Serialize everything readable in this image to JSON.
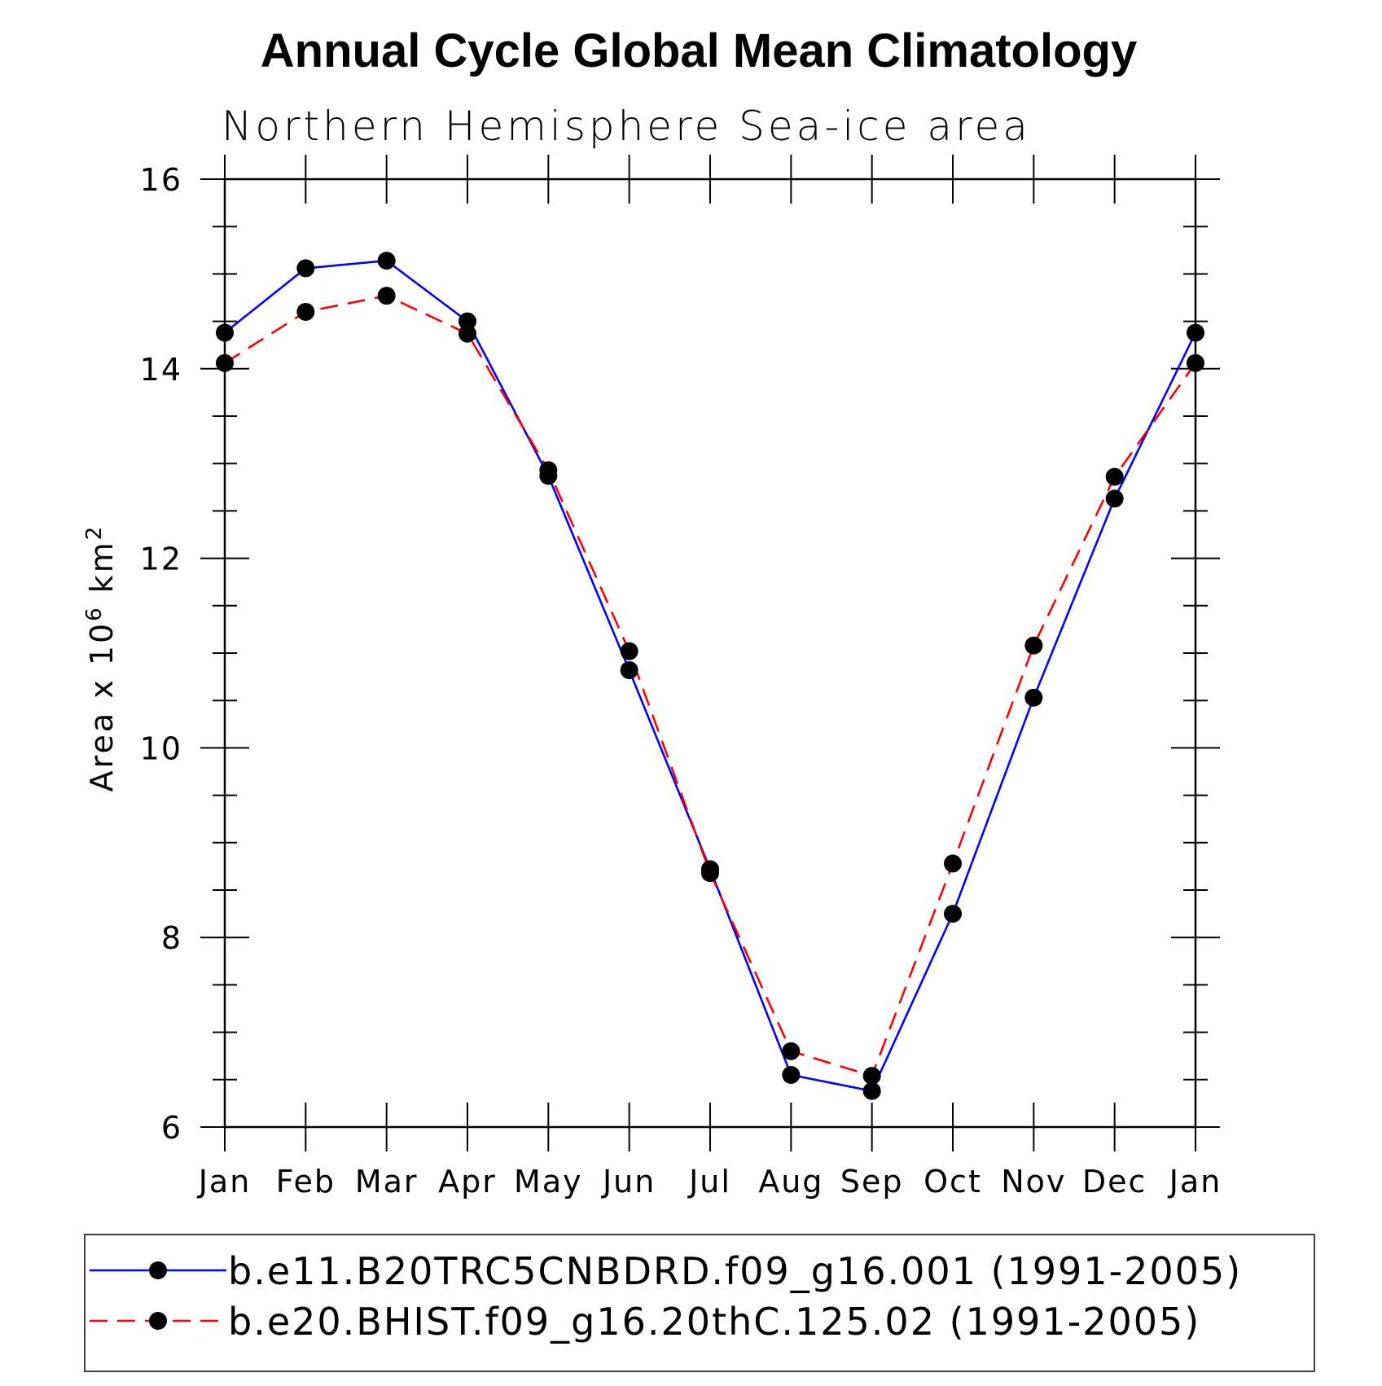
{
  "chart_data": {
    "type": "line",
    "title": "Annual Cycle Global Mean Climatology",
    "subtitle": "Northern Hemisphere Sea-ice area",
    "ylabel": "Area x 10",
    "ylabel_exp": "6",
    "ylabel_unit": " km",
    "ylabel_unit_exp": "2",
    "ylim": [
      6,
      16
    ],
    "y_ticks": [
      "6",
      "8",
      "10",
      "12",
      "14",
      "16"
    ],
    "categories": [
      "Jan",
      "Feb",
      "Mar",
      "Apr",
      "May",
      "Jun",
      "Jul",
      "Aug",
      "Sep",
      "Oct",
      "Nov",
      "Dec",
      "Jan"
    ],
    "legend_position": "bottom",
    "series": [
      {
        "name": "b.e11.B20TRC5CNBDRD.f09_g16.001 (1991-2005)",
        "color": "#0000ff",
        "dash": "solid",
        "values": [
          14.38,
          15.06,
          15.14,
          14.5,
          12.87,
          10.82,
          8.72,
          6.55,
          6.38,
          8.25,
          10.53,
          12.63,
          14.38
        ]
      },
      {
        "name": "b.e20.BHIST.f09_g16.20thC.125.02 (1991-2005)",
        "color": "#ff0000",
        "dash": "dashed",
        "values": [
          14.06,
          14.6,
          14.77,
          14.37,
          12.93,
          11.02,
          8.68,
          6.8,
          6.54,
          8.78,
          11.08,
          12.86,
          14.06
        ]
      }
    ]
  }
}
